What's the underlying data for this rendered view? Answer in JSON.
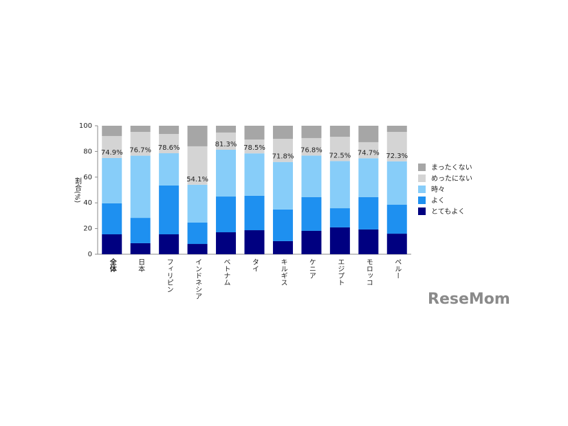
{
  "chart_data": {
    "type": "stacked-bar",
    "y_label": "割合(%)",
    "categories": [
      "全体",
      "日本",
      "フィリピン",
      "インドネシア",
      "ベトナム",
      "タイ",
      "キルギス",
      "ケニア",
      "エジプト",
      "モロッコ",
      "ペルー"
    ],
    "series": [
      {
        "name": "とてもよく",
        "color": "#000080",
        "values": [
          15.5,
          8.6,
          15.5,
          8.0,
          17.1,
          18.7,
          10.2,
          18.2,
          20.9,
          19.3,
          16.0
        ]
      },
      {
        "name": "よく",
        "color": "#1e90f0",
        "values": [
          24.1,
          19.7,
          38.0,
          16.6,
          27.8,
          26.8,
          24.6,
          26.2,
          14.9,
          25.1,
          22.5
        ]
      },
      {
        "name": "時々",
        "color": "#87cdf9",
        "values": [
          35.3,
          48.4,
          25.1,
          29.5,
          36.4,
          33.0,
          37.0,
          32.4,
          36.7,
          30.3,
          33.8
        ]
      },
      {
        "name": "めったにない",
        "color": "#d4d4d4",
        "values": [
          17.1,
          18.5,
          15.0,
          29.9,
          13.4,
          10.8,
          18.0,
          13.6,
          18.9,
          12.5,
          22.9
        ]
      },
      {
        "name": "まったくない",
        "color": "#a6a6a6",
        "values": [
          8.0,
          4.8,
          6.4,
          16.0,
          5.3,
          10.7,
          10.2,
          9.6,
          8.6,
          12.8,
          4.8
        ]
      }
    ],
    "annotations": [
      "74.9%",
      "76.7%",
      "78.6%",
      "54.1%",
      "81.3%",
      "78.5%",
      "71.8%",
      "76.8%",
      "72.5%",
      "74.7%",
      "72.3%"
    ],
    "ylim": [
      0,
      100
    ],
    "yticks": [
      0,
      20,
      40,
      60,
      80,
      100
    ],
    "watermark": "ReseMom"
  }
}
